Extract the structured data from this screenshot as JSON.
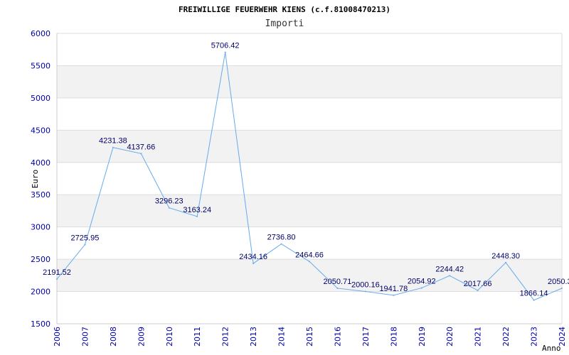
{
  "chart_data": {
    "type": "line",
    "title": "FREIWILLIGE FEUERWEHR KIENS (c.f.81008470213)",
    "subtitle": "Importi",
    "ylabel": "Euro",
    "xlabel": "Anno",
    "ylim": [
      1500,
      6000
    ],
    "y_ticks": [
      1500,
      2000,
      2500,
      3000,
      3500,
      4000,
      4500,
      5000,
      5500,
      6000
    ],
    "grid": true,
    "categories": [
      "2006",
      "2007",
      "2008",
      "2009",
      "2010",
      "2011",
      "2012",
      "2013",
      "2014",
      "2015",
      "2016",
      "2017",
      "2018",
      "2019",
      "2020",
      "2021",
      "2022",
      "2023",
      "2024"
    ],
    "series": [
      {
        "values": [
          2191.52,
          2725.95,
          4231.38,
          4137.66,
          3296.23,
          3163.24,
          5706.42,
          2434.16,
          2736.8,
          2464.66,
          2050.71,
          2000.16,
          1941.78,
          2054.92,
          2244.42,
          2017.66,
          2448.3,
          1866.14,
          2050.3
        ],
        "labels": [
          "2191.52",
          "2725.95",
          "4231.38",
          "4137.66",
          "3296.23",
          "3163.24",
          "5706.42",
          "2434.16",
          "2736.80",
          "2464.66",
          "2050.71",
          "2000.16",
          "1941.78",
          "2054.92",
          "2244.42",
          "2017.66",
          "2448.30",
          "1866.14",
          "2050.3"
        ]
      }
    ],
    "colors": {
      "line": "#66aaee",
      "band": "#f2f2f2",
      "grid": "#dddddd",
      "axis_text": "#0000aa",
      "data_label": "#000066"
    }
  }
}
